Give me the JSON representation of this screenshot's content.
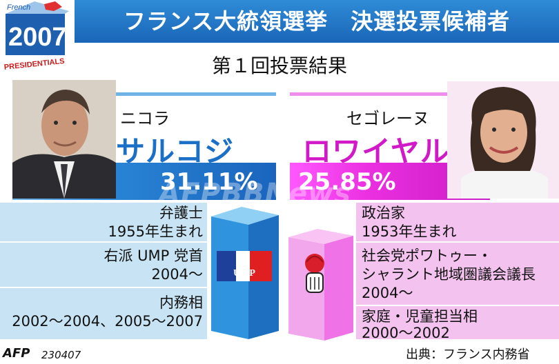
{
  "header": {
    "title": "フランス大統領選挙　決選投票候補者",
    "logo_small": "French",
    "logo_year": "2007",
    "logo_word": "PRESIDENTIALS"
  },
  "subtitle": "第１回投票結果",
  "candidates": {
    "left": {
      "first_name": "ニコラ",
      "last_name": "サルコジ",
      "percent": "31.11%",
      "info": [
        "弁護士",
        "1955年生まれ",
        "右派 UMP 党首",
        "2004～",
        "内務相",
        "2002～2004、2005～2007"
      ],
      "party_logo": "UMP",
      "color": "#1a64bd"
    },
    "right": {
      "first_name": "セゴレーヌ",
      "last_name": "ロワイヤル",
      "percent": "25.85%",
      "info": [
        "政治家",
        "1953年生まれ",
        "社会党ポワトゥー・",
        "シャラント地域圏議会議長",
        "2004～",
        "家庭・児童担当相",
        "2000～2002"
      ],
      "party_logo_icon": "rose-fist-icon",
      "color": "#d219c8"
    }
  },
  "footer": {
    "agency": "AFP",
    "date": "230407",
    "source": "出典：フランス内務省"
  },
  "watermark": "AFPBBNews"
}
